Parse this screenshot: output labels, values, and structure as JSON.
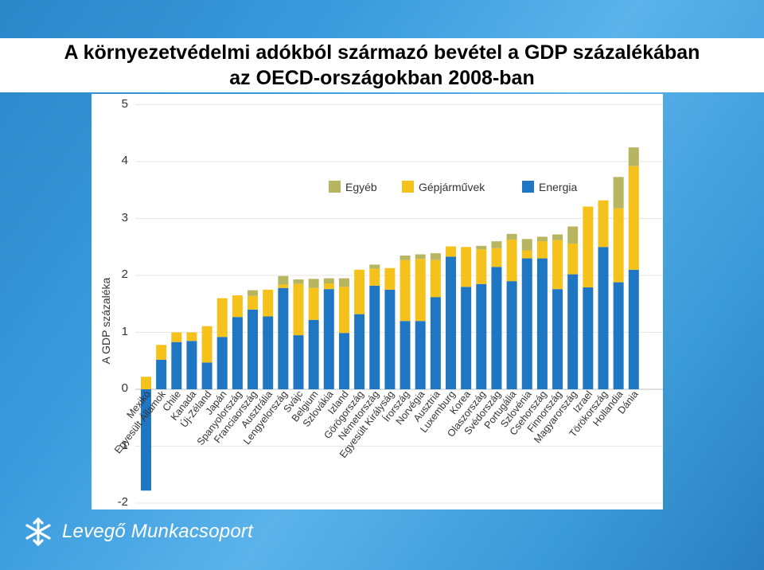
{
  "slide": {
    "title_line1": "A környezetvédelmi adókból származó bevétel a GDP százalékában",
    "title_line2": "az OECD-országokban 2008-ban",
    "footer_brand": "Levegő Munkacsoport",
    "background_color": "#3a9bdc"
  },
  "chart_data": {
    "type": "bar",
    "stacked": true,
    "title": "",
    "xlabel": "",
    "ylabel": "A GDP százaléka",
    "ylim": [
      -2,
      5
    ],
    "yticks": [
      "5",
      "4",
      "3",
      "2",
      "1",
      "0",
      "-1",
      "-2"
    ],
    "grid": true,
    "legend_position": "top-center",
    "categories": [
      "Mexikó",
      "Egyesült Államok",
      "Chile",
      "Kanada",
      "Új-Zéland",
      "Japán",
      "Spanyolország",
      "Franciaország",
      "Ausztrália",
      "Lengyelország",
      "Svájc",
      "Belgium",
      "Szlovákia",
      "Izland",
      "Görögország",
      "Németország",
      "Egyesült Királyság",
      "Írország",
      "Norvégia",
      "Ausztria",
      "Luxemburg",
      "Korea",
      "Olaszország",
      "Svédország",
      "Portugália",
      "Szlovénia",
      "Csehország",
      "Finnország",
      "Magyarország",
      "Izrael",
      "Törökország",
      "Hollandia",
      "Dánia"
    ],
    "series": [
      {
        "name": "Energia",
        "color": "#1f77c4",
        "values": [
          -1.78,
          0.52,
          0.83,
          0.85,
          0.47,
          0.92,
          1.27,
          1.4,
          1.28,
          1.78,
          0.95,
          1.22,
          1.76,
          0.99,
          1.32,
          1.82,
          1.75,
          1.2,
          1.2,
          1.62,
          2.33,
          1.8,
          1.85,
          2.15,
          1.9,
          2.3,
          2.3,
          1.76,
          2.02,
          1.79,
          2.5,
          1.88,
          2.1
        ]
      },
      {
        "name": "Gépjárművek",
        "color": "#f5c21b",
        "values": [
          0.22,
          0.26,
          0.17,
          0.15,
          0.64,
          0.68,
          0.38,
          0.24,
          0.47,
          0.06,
          0.9,
          0.56,
          0.1,
          0.81,
          0.78,
          0.3,
          0.38,
          1.07,
          1.09,
          0.65,
          0.18,
          0.7,
          0.61,
          0.33,
          0.73,
          0.14,
          0.3,
          0.86,
          0.54,
          1.42,
          0.82,
          1.3,
          1.82
        ]
      },
      {
        "name": "Egyéb",
        "color": "#b8b560",
        "values": [
          0,
          0,
          0,
          0,
          0,
          0,
          0,
          0.1,
          0,
          0.15,
          0.08,
          0.16,
          0.09,
          0.15,
          0,
          0.07,
          0,
          0.08,
          0.08,
          0.12,
          0,
          0,
          0.06,
          0.12,
          0.1,
          0.2,
          0.08,
          0.1,
          0.3,
          0,
          0,
          0.55,
          0.33
        ]
      }
    ]
  }
}
